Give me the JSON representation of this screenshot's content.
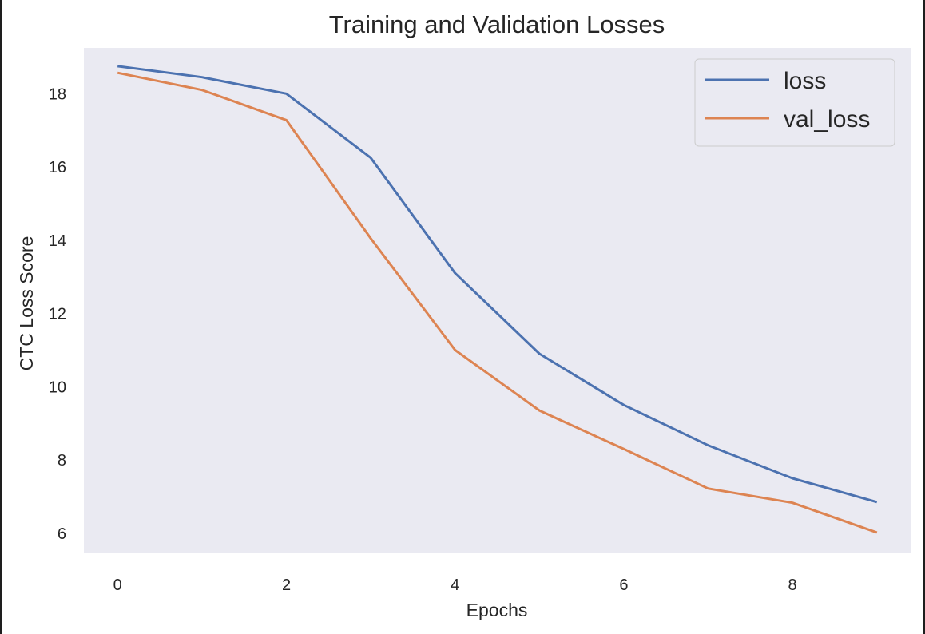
{
  "chart_data": {
    "type": "line",
    "title": "Training and Validation Losses",
    "xlabel": "Epochs",
    "ylabel": "CTC Loss Score",
    "x": [
      0,
      1,
      2,
      3,
      4,
      5,
      6,
      7,
      8,
      9
    ],
    "xlim": [
      -0.4,
      9.4
    ],
    "ylim": [
      5.45,
      19.25
    ],
    "xticks": [
      0,
      2,
      4,
      6,
      8
    ],
    "yticks": [
      6,
      8,
      10,
      12,
      14,
      16,
      18
    ],
    "grid": false,
    "legend_position": "top-right",
    "series": [
      {
        "name": "loss",
        "color": "#4c72b0",
        "values": [
          18.75,
          18.45,
          18.0,
          16.25,
          13.1,
          10.9,
          9.5,
          8.4,
          7.5,
          6.85
        ]
      },
      {
        "name": "val_loss",
        "color": "#dd8452",
        "values": [
          18.57,
          18.1,
          17.28,
          14.05,
          11.0,
          9.35,
          8.3,
          7.22,
          6.83,
          6.02
        ]
      }
    ],
    "background": "#eaeaf2"
  }
}
